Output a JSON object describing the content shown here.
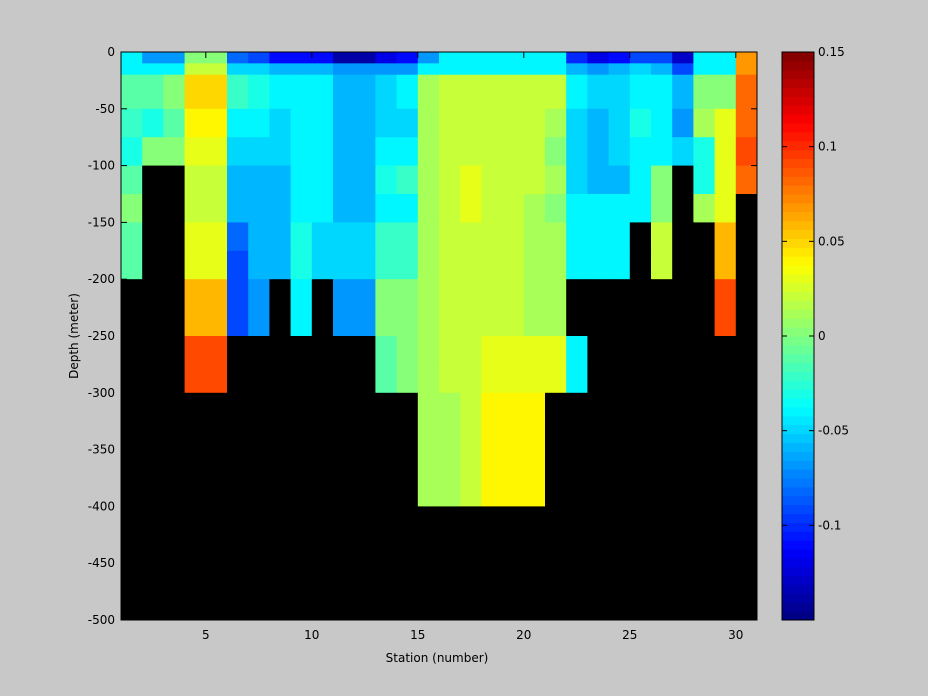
{
  "chart_data": {
    "type": "heatmap",
    "title": "",
    "xlabel": "Station (number)",
    "ylabel": "Depth (meter)",
    "xlim": [
      1,
      31
    ],
    "ylim": [
      -500,
      0
    ],
    "x_ticks": [
      5,
      10,
      15,
      20,
      25,
      30
    ],
    "y_ticks": [
      0,
      -50,
      -100,
      -150,
      -200,
      -250,
      -300,
      -350,
      -400,
      -450,
      -500
    ],
    "colorbar": {
      "colormap": "jet",
      "clim": [
        -0.15,
        0.15
      ],
      "ticks": [
        0.15,
        0.1,
        0.05,
        0,
        -0.05,
        -0.1
      ]
    },
    "missing_color": "#000000",
    "stations": [
      1.5,
      2.5,
      3.5,
      4.5,
      5.5,
      6.5,
      7.5,
      8.5,
      9.5,
      10.5,
      11.5,
      12.5,
      13.5,
      14.5,
      15.5,
      16.5,
      17.5,
      18.5,
      19.5,
      20.5,
      21.5,
      22.5,
      23.5,
      24.5,
      25.5,
      26.5,
      27.5,
      28.5,
      29.5,
      30.5
    ],
    "depth_bins": [
      -5,
      -15,
      -25,
      -37.5,
      -62.5,
      -87.5,
      -112.5,
      -137.5,
      -162.5,
      -187.5,
      -212.5,
      -237.5,
      -262.5,
      -287.5,
      -312.5,
      -337.5,
      -362.5,
      -387.5,
      -412.5,
      -437.5,
      -462.5,
      -487.5
    ],
    "values": [
      [
        -0.04,
        -0.07,
        -0.07,
        0.0,
        0.0,
        -0.08,
        -0.09,
        -0.11,
        -0.11,
        -0.11,
        -0.14,
        -0.14,
        -0.12,
        -0.11,
        -0.07,
        -0.04,
        -0.04,
        -0.04,
        -0.04,
        -0.04,
        -0.04,
        -0.1,
        -0.12,
        -0.11,
        -0.09,
        -0.09,
        -0.13,
        -0.04,
        -0.04,
        0.07
      ],
      [
        -0.04,
        -0.04,
        -0.04,
        0.02,
        0.02,
        -0.05,
        -0.05,
        -0.06,
        -0.06,
        -0.06,
        -0.07,
        -0.07,
        -0.07,
        -0.07,
        -0.04,
        -0.04,
        -0.04,
        -0.04,
        -0.04,
        -0.04,
        -0.04,
        -0.06,
        -0.07,
        -0.06,
        -0.05,
        -0.06,
        -0.09,
        -0.04,
        -0.04,
        0.07
      ],
      [
        -0.01,
        -0.01,
        0.0,
        0.05,
        0.05,
        -0.02,
        -0.03,
        -0.04,
        -0.04,
        -0.04,
        -0.06,
        -0.06,
        -0.05,
        -0.04,
        0.01,
        0.02,
        0.02,
        0.02,
        0.02,
        0.02,
        0.02,
        -0.04,
        -0.05,
        -0.05,
        -0.04,
        -0.04,
        -0.06,
        0.0,
        0.0,
        0.08
      ],
      [
        -0.01,
        -0.01,
        0.0,
        0.05,
        0.05,
        -0.02,
        -0.03,
        -0.04,
        -0.04,
        -0.04,
        -0.06,
        -0.06,
        -0.05,
        -0.04,
        0.01,
        0.02,
        0.02,
        0.02,
        0.02,
        0.02,
        0.02,
        -0.04,
        -0.05,
        -0.05,
        -0.04,
        -0.04,
        -0.06,
        0.0,
        0.0,
        0.08
      ],
      [
        -0.02,
        -0.03,
        -0.01,
        0.04,
        0.04,
        -0.04,
        -0.04,
        -0.05,
        -0.04,
        -0.04,
        -0.06,
        -0.06,
        -0.05,
        -0.05,
        0.01,
        0.02,
        0.02,
        0.02,
        0.02,
        0.02,
        0.01,
        -0.05,
        -0.06,
        -0.05,
        -0.03,
        -0.04,
        -0.07,
        0.01,
        0.03,
        0.08
      ],
      [
        -0.03,
        0.0,
        0.0,
        0.03,
        0.03,
        -0.05,
        -0.05,
        -0.05,
        -0.04,
        -0.04,
        -0.06,
        -0.06,
        -0.04,
        -0.04,
        0.01,
        0.02,
        0.02,
        0.02,
        0.02,
        0.02,
        0.0,
        -0.05,
        -0.06,
        -0.05,
        -0.04,
        -0.04,
        -0.05,
        -0.03,
        0.03,
        0.09
      ],
      [
        -0.01,
        null,
        null,
        0.02,
        0.02,
        -0.06,
        -0.06,
        -0.06,
        -0.04,
        -0.04,
        -0.06,
        -0.06,
        -0.03,
        -0.02,
        0.01,
        0.02,
        0.03,
        0.02,
        0.02,
        0.02,
        0.01,
        -0.05,
        -0.06,
        -0.06,
        -0.04,
        0.0,
        null,
        -0.03,
        0.03,
        0.08
      ],
      [
        0.0,
        null,
        null,
        0.02,
        0.02,
        -0.06,
        -0.06,
        -0.06,
        -0.04,
        -0.04,
        -0.06,
        -0.06,
        -0.04,
        -0.04,
        0.01,
        0.02,
        0.03,
        0.02,
        0.02,
        0.01,
        0.0,
        -0.04,
        -0.04,
        -0.04,
        -0.04,
        0.0,
        null,
        0.01,
        0.03,
        null
      ],
      [
        -0.01,
        null,
        null,
        0.03,
        0.03,
        -0.08,
        -0.06,
        -0.06,
        -0.03,
        -0.05,
        -0.05,
        -0.05,
        -0.02,
        -0.02,
        0.01,
        0.02,
        0.02,
        0.02,
        0.02,
        0.01,
        0.01,
        -0.04,
        -0.04,
        -0.04,
        null,
        0.02,
        null,
        null,
        0.06,
        null
      ],
      [
        -0.01,
        null,
        null,
        0.03,
        0.03,
        -0.09,
        -0.06,
        -0.06,
        -0.03,
        -0.05,
        -0.05,
        -0.05,
        -0.02,
        -0.02,
        0.01,
        0.02,
        0.02,
        0.02,
        0.02,
        0.01,
        0.01,
        -0.04,
        -0.04,
        -0.04,
        null,
        0.02,
        null,
        null,
        0.06,
        null
      ],
      [
        null,
        null,
        null,
        0.06,
        0.06,
        -0.09,
        -0.07,
        null,
        -0.04,
        null,
        -0.07,
        -0.07,
        0.0,
        0.0,
        0.01,
        0.02,
        0.02,
        0.02,
        0.02,
        0.01,
        0.01,
        null,
        null,
        null,
        null,
        null,
        null,
        null,
        0.09,
        null
      ],
      [
        null,
        null,
        null,
        0.06,
        0.06,
        -0.09,
        -0.07,
        null,
        -0.04,
        null,
        -0.07,
        -0.07,
        0.0,
        0.0,
        0.01,
        0.02,
        0.02,
        0.02,
        0.02,
        0.01,
        0.01,
        null,
        null,
        null,
        null,
        null,
        null,
        null,
        0.09,
        null
      ],
      [
        null,
        null,
        null,
        0.09,
        0.09,
        null,
        null,
        null,
        null,
        null,
        null,
        null,
        -0.01,
        0.0,
        0.01,
        0.02,
        0.02,
        0.03,
        0.03,
        0.03,
        0.03,
        -0.04,
        null,
        null,
        null,
        null,
        null,
        null,
        null,
        null
      ],
      [
        null,
        null,
        null,
        0.09,
        0.09,
        null,
        null,
        null,
        null,
        null,
        null,
        null,
        -0.01,
        0.0,
        0.01,
        0.02,
        0.02,
        0.03,
        0.03,
        0.03,
        0.03,
        -0.04,
        null,
        null,
        null,
        null,
        null,
        null,
        null,
        null
      ],
      [
        null,
        null,
        null,
        null,
        null,
        null,
        null,
        null,
        null,
        null,
        null,
        null,
        null,
        null,
        0.01,
        0.01,
        0.02,
        0.04,
        0.04,
        0.04,
        null,
        null,
        null,
        null,
        null,
        null,
        null,
        null,
        null,
        null
      ],
      [
        null,
        null,
        null,
        null,
        null,
        null,
        null,
        null,
        null,
        null,
        null,
        null,
        null,
        null,
        0.01,
        0.01,
        0.02,
        0.04,
        0.04,
        0.04,
        null,
        null,
        null,
        null,
        null,
        null,
        null,
        null,
        null,
        null
      ],
      [
        null,
        null,
        null,
        null,
        null,
        null,
        null,
        null,
        null,
        null,
        null,
        null,
        null,
        null,
        0.01,
        0.01,
        0.02,
        0.04,
        0.04,
        0.04,
        null,
        null,
        null,
        null,
        null,
        null,
        null,
        null,
        null,
        null
      ],
      [
        null,
        null,
        null,
        null,
        null,
        null,
        null,
        null,
        null,
        null,
        null,
        null,
        null,
        null,
        0.01,
        0.01,
        0.02,
        0.04,
        0.04,
        0.04,
        null,
        null,
        null,
        null,
        null,
        null,
        null,
        null,
        null,
        null
      ],
      [
        null,
        null,
        null,
        null,
        null,
        null,
        null,
        null,
        null,
        null,
        null,
        null,
        null,
        null,
        null,
        null,
        null,
        null,
        null,
        null,
        null,
        null,
        null,
        null,
        null,
        null,
        null,
        null,
        null,
        null
      ],
      [
        null,
        null,
        null,
        null,
        null,
        null,
        null,
        null,
        null,
        null,
        null,
        null,
        null,
        null,
        null,
        null,
        null,
        null,
        null,
        null,
        null,
        null,
        null,
        null,
        null,
        null,
        null,
        null,
        null,
        null
      ],
      [
        null,
        null,
        null,
        null,
        null,
        null,
        null,
        null,
        null,
        null,
        null,
        null,
        null,
        null,
        null,
        null,
        null,
        null,
        null,
        null,
        null,
        null,
        null,
        null,
        null,
        null,
        null,
        null,
        null,
        null
      ],
      [
        null,
        null,
        null,
        null,
        null,
        null,
        null,
        null,
        null,
        null,
        null,
        null,
        null,
        null,
        null,
        null,
        null,
        null,
        null,
        null,
        null,
        null,
        null,
        null,
        null,
        null,
        null,
        null,
        null,
        null
      ]
    ]
  }
}
